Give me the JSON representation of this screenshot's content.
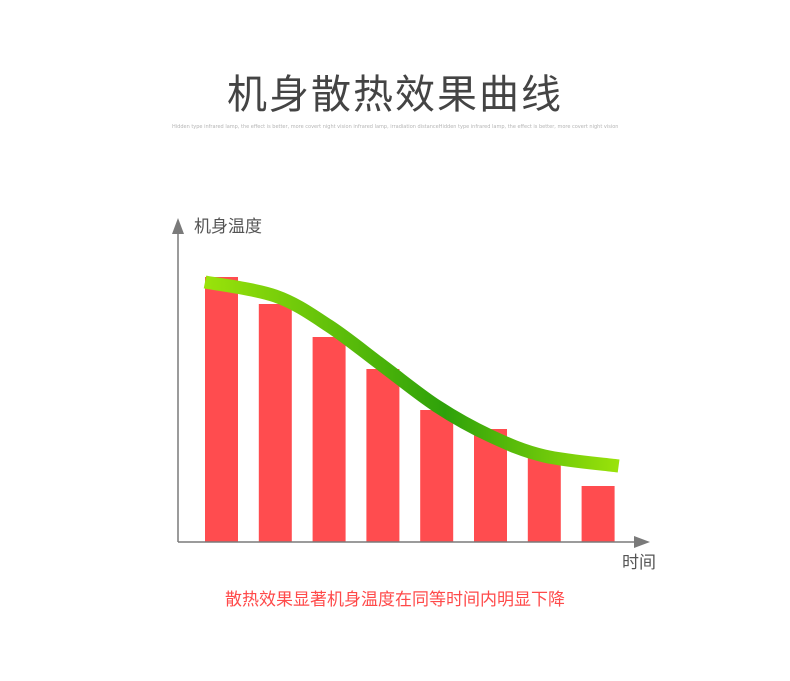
{
  "title": "机身散热效果曲线",
  "subtitle": "Hidden type infrared lamp, the effect is better, more covert night vision infrared lamp, irradiation distanceHidden type infrared lamp, the effect is better, more covert night vision infrared lamp, irradi",
  "caption": "散热效果显著机身温度在同等时间内明显下降",
  "colors": {
    "bar": "#ff4c4f",
    "axis": "#7a7a7a",
    "curve_light": "#9ae30a",
    "curve_dark": "#2ea10a"
  },
  "chart_data": {
    "type": "bar",
    "title": "机身散热效果曲线",
    "xlabel": "时间",
    "ylabel": "机身温度",
    "categories": [
      "",
      "",
      "",
      "",
      "",
      "",
      "",
      ""
    ],
    "values": [
      265,
      238,
      205,
      173,
      132,
      113,
      86,
      56
    ],
    "ylim": [
      0,
      320
    ],
    "grid": false,
    "trend_curve": [
      260,
      246,
      216,
      176,
      136,
      106,
      86,
      76
    ]
  }
}
